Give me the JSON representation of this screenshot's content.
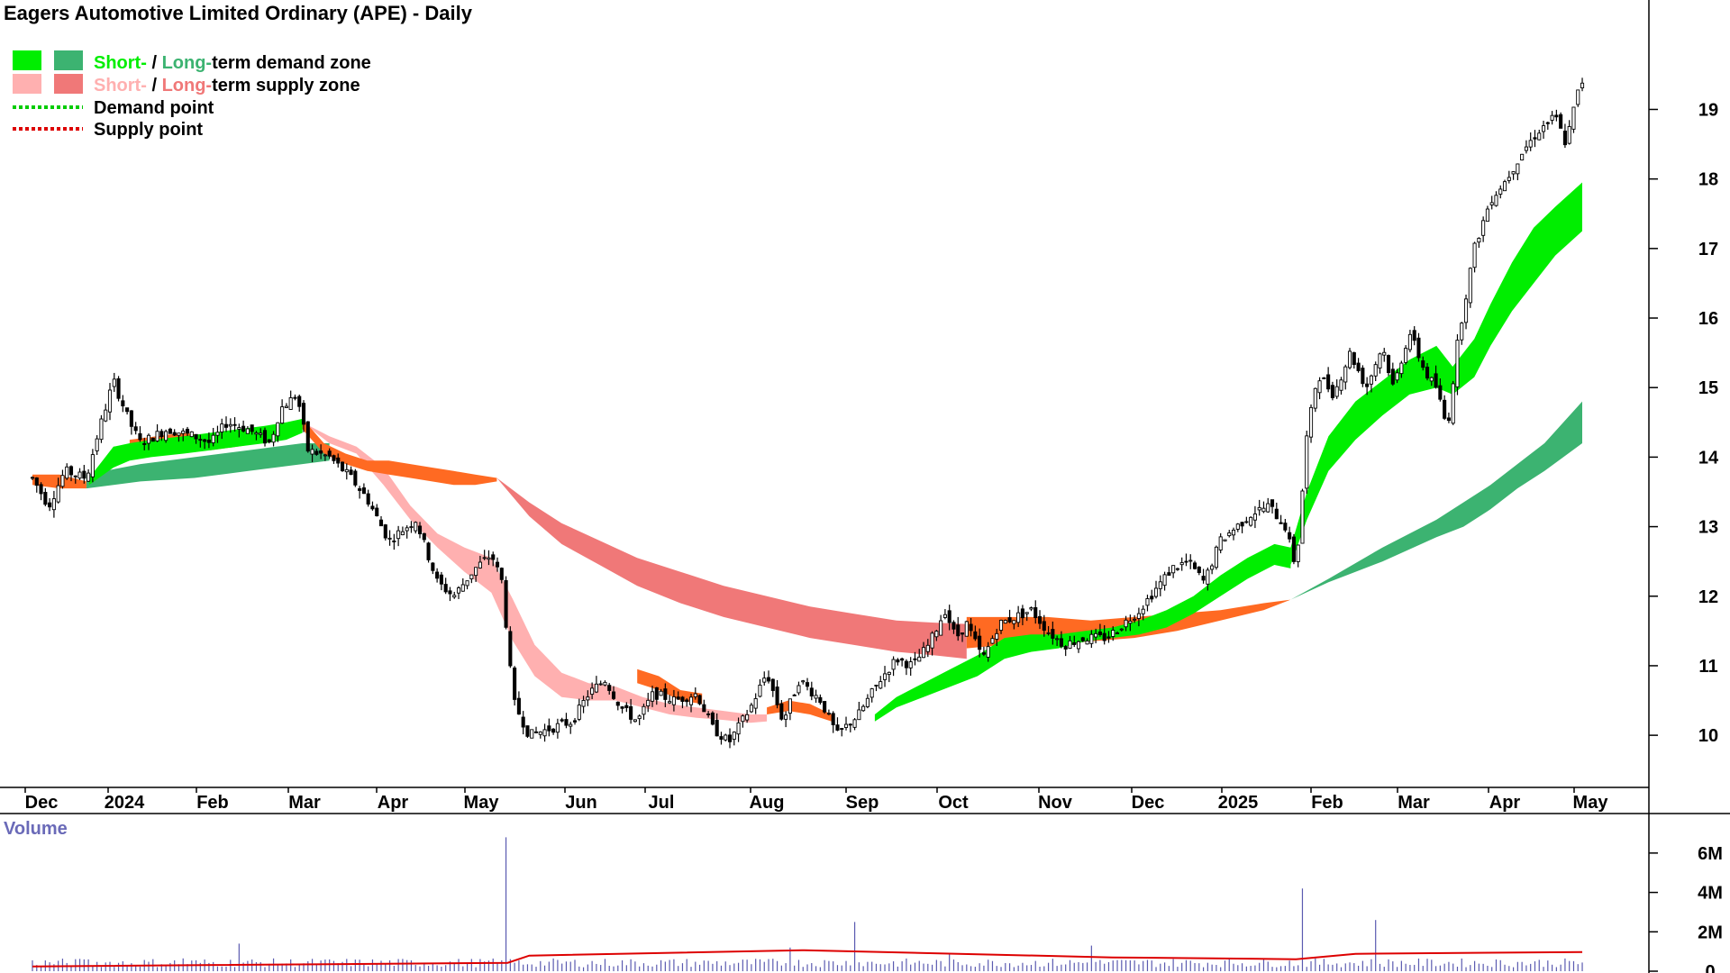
{
  "title": "Eagers Automotive Limited Ordinary (APE) - Daily",
  "legend": {
    "demand_zone": {
      "short": "Short-",
      "sep": " / ",
      "long": "Long-",
      "rest": "term demand zone"
    },
    "supply_zone": {
      "short": "Short-",
      "sep": " / ",
      "long": "Long-",
      "rest": "term supply zone"
    },
    "demand_point": "Demand point",
    "supply_point": "Supply point"
  },
  "colors": {
    "short_demand": "#00ee00",
    "long_demand": "#3cb371",
    "short_supply": "#ffb0b0",
    "long_supply": "#f07878",
    "orange_zone": "#ff6a22",
    "demand_point": "#00cc00",
    "supply_point": "#dd0000",
    "volume_bar": "#5a5ab0",
    "volume_ma": "#dd0000",
    "volume_label": "#6a6ab8"
  },
  "volume_label": "Volume",
  "chart_data": {
    "type": "candlestick",
    "title": "Eagers Automotive Limited Ordinary (APE) - Daily",
    "x_labels": [
      "Dec",
      "2024",
      "Feb",
      "Mar",
      "Apr",
      "May",
      "Jun",
      "Jul",
      "Aug",
      "Sep",
      "Oct",
      "Nov",
      "Dec",
      "2025",
      "Feb",
      "Mar",
      "Apr",
      "May"
    ],
    "y_axis": {
      "side": "right",
      "ticks": [
        10,
        11,
        12,
        13,
        14,
        15,
        16,
        17,
        18,
        19
      ],
      "range": [
        9.6,
        19.9
      ]
    },
    "volume_axis": {
      "side": "right",
      "ticks": [
        "0",
        "2M",
        "4M",
        "6M"
      ],
      "tick_values": [
        0,
        2000000,
        4000000,
        6000000
      ],
      "range": [
        0,
        7000000
      ]
    },
    "price_anchors": [
      [
        0,
        13.7
      ],
      [
        0.3,
        13.3
      ],
      [
        0.6,
        13.8
      ],
      [
        1.0,
        13.7
      ],
      [
        1.2,
        14.3
      ],
      [
        1.5,
        15.1
      ],
      [
        1.8,
        14.5
      ],
      [
        2.0,
        14.2
      ],
      [
        2.5,
        14.4
      ],
      [
        3.0,
        14.3
      ],
      [
        3.3,
        14.2
      ],
      [
        3.6,
        14.5
      ],
      [
        4.0,
        14.4
      ],
      [
        4.4,
        14.2
      ],
      [
        4.6,
        14.7
      ],
      [
        4.9,
        14.9
      ],
      [
        5.1,
        14.1
      ],
      [
        5.5,
        14.0
      ],
      [
        5.9,
        13.7
      ],
      [
        6.2,
        13.4
      ],
      [
        6.6,
        12.8
      ],
      [
        7.1,
        13.1
      ],
      [
        7.5,
        12.2
      ],
      [
        7.8,
        12.0
      ],
      [
        8.2,
        12.4
      ],
      [
        8.5,
        12.6
      ],
      [
        8.7,
        12.2
      ],
      [
        8.9,
        10.5
      ],
      [
        9.2,
        10.0
      ],
      [
        9.6,
        10.1
      ],
      [
        10.0,
        10.2
      ],
      [
        10.3,
        10.6
      ],
      [
        10.6,
        10.8
      ],
      [
        10.9,
        10.4
      ],
      [
        11.2,
        10.2
      ],
      [
        11.5,
        10.6
      ],
      [
        11.9,
        10.5
      ],
      [
        12.3,
        10.6
      ],
      [
        12.6,
        10.1
      ],
      [
        12.9,
        9.9
      ],
      [
        13.3,
        10.4
      ],
      [
        13.6,
        10.9
      ],
      [
        13.9,
        10.2
      ],
      [
        14.2,
        10.8
      ],
      [
        14.6,
        10.5
      ],
      [
        14.9,
        10.0
      ],
      [
        15.3,
        10.3
      ],
      [
        15.7,
        10.8
      ],
      [
        16.0,
        11.1
      ],
      [
        16.3,
        11.0
      ],
      [
        16.6,
        11.3
      ],
      [
        16.9,
        11.8
      ],
      [
        17.1,
        11.4
      ],
      [
        17.3,
        11.6
      ],
      [
        17.6,
        11.1
      ],
      [
        17.9,
        11.6
      ],
      [
        18.2,
        11.7
      ],
      [
        18.5,
        11.8
      ],
      [
        18.8,
        11.5
      ],
      [
        19.1,
        11.3
      ],
      [
        19.5,
        11.4
      ],
      [
        19.9,
        11.4
      ],
      [
        20.2,
        11.6
      ],
      [
        20.5,
        11.8
      ],
      [
        20.8,
        12.1
      ],
      [
        21.1,
        12.4
      ],
      [
        21.4,
        12.5
      ],
      [
        21.7,
        12.2
      ],
      [
        22.0,
        12.8
      ],
      [
        22.3,
        13.0
      ],
      [
        22.6,
        13.2
      ],
      [
        22.9,
        13.3
      ],
      [
        23.2,
        13.0
      ],
      [
        23.4,
        12.4
      ],
      [
        23.6,
        14.3
      ],
      [
        23.8,
        15.2
      ],
      [
        24.1,
        14.9
      ],
      [
        24.4,
        15.5
      ],
      [
        24.7,
        15.0
      ],
      [
        25.0,
        15.6
      ],
      [
        25.2,
        15.0
      ],
      [
        25.5,
        15.8
      ],
      [
        25.8,
        15.2
      ],
      [
        26.0,
        15.0
      ],
      [
        26.2,
        14.4
      ],
      [
        26.4,
        15.7
      ],
      [
        26.7,
        17.0
      ],
      [
        27.0,
        17.7
      ],
      [
        27.3,
        18.0
      ],
      [
        27.6,
        18.4
      ],
      [
        27.9,
        18.7
      ],
      [
        28.2,
        18.9
      ],
      [
        28.4,
        18.5
      ],
      [
        28.6,
        19.2
      ],
      [
        28.7,
        19.4
      ]
    ],
    "short_demand_zone": [
      {
        "x": [
          1.05,
          1.5,
          1.8,
          2.2,
          2.8,
          3.3,
          3.8,
          4.3,
          4.7,
          5.0
        ],
        "top": [
          13.7,
          14.15,
          14.2,
          14.25,
          14.3,
          14.35,
          14.4,
          14.45,
          14.5,
          14.55
        ],
        "bottom": [
          13.6,
          13.85,
          13.95,
          14.0,
          14.05,
          14.1,
          14.15,
          14.2,
          14.25,
          14.35
        ]
      },
      {
        "x": [
          15.6,
          16.0,
          16.5,
          17.0,
          17.5,
          18.0,
          18.5,
          19.0,
          19.5,
          20.0,
          20.5,
          21.0,
          21.5,
          22.0,
          22.5,
          23.0,
          23.3
        ],
        "top": [
          10.3,
          10.55,
          10.75,
          10.95,
          11.15,
          11.4,
          11.45,
          11.45,
          11.5,
          11.55,
          11.65,
          11.8,
          12.0,
          12.3,
          12.55,
          12.75,
          12.7
        ],
        "bottom": [
          10.2,
          10.4,
          10.55,
          10.7,
          10.85,
          11.1,
          11.2,
          11.25,
          11.35,
          11.4,
          11.45,
          11.55,
          11.75,
          12.0,
          12.25,
          12.45,
          12.4
        ]
      },
      {
        "x": [
          23.3,
          23.6,
          24.0,
          24.5,
          25.0,
          25.5,
          26.0,
          26.3,
          26.7,
          27.0,
          27.4,
          27.8,
          28.2,
          28.7
        ],
        "top": [
          12.7,
          13.5,
          14.3,
          14.8,
          15.1,
          15.4,
          15.6,
          15.3,
          15.7,
          16.2,
          16.8,
          17.3,
          17.6,
          17.95
        ],
        "bottom": [
          12.45,
          13.1,
          13.8,
          14.25,
          14.6,
          14.9,
          15.0,
          14.9,
          15.15,
          15.6,
          16.1,
          16.5,
          16.9,
          17.25
        ]
      }
    ],
    "long_demand_zone": [
      {
        "x": [
          1.0,
          2.0,
          3.0,
          4.0,
          5.0,
          5.5
        ],
        "top": [
          13.75,
          13.9,
          14.0,
          14.1,
          14.2,
          14.2
        ],
        "bottom": [
          13.55,
          13.65,
          13.7,
          13.8,
          13.9,
          13.95
        ]
      },
      {
        "x": [
          23.3,
          24.0,
          25.0,
          26.0,
          26.5,
          27.0,
          27.5,
          28.0,
          28.7
        ],
        "top": [
          11.95,
          12.25,
          12.7,
          13.1,
          13.35,
          13.6,
          13.9,
          14.2,
          14.8
        ],
        "bottom": [
          11.95,
          12.2,
          12.5,
          12.85,
          13.0,
          13.25,
          13.55,
          13.8,
          14.2
        ]
      }
    ],
    "short_supply_zone": [
      {
        "x": [
          5.0,
          5.5,
          6.0,
          6.5,
          7.0,
          7.5,
          8.0,
          8.5,
          8.9,
          9.3,
          9.8,
          10.3,
          10.8,
          11.3,
          11.8,
          12.3,
          12.8,
          13.3,
          13.6
        ],
        "top": [
          14.5,
          14.3,
          14.15,
          13.85,
          13.3,
          12.9,
          12.7,
          12.55,
          11.95,
          11.3,
          10.9,
          10.75,
          10.7,
          10.55,
          10.45,
          10.4,
          10.35,
          10.3,
          10.3
        ],
        "bottom": [
          14.5,
          14.2,
          14.05,
          13.6,
          13.1,
          12.7,
          12.35,
          12.05,
          11.35,
          10.85,
          10.55,
          10.5,
          10.5,
          10.4,
          10.3,
          10.25,
          10.22,
          10.18,
          10.2
        ]
      }
    ],
    "long_supply_zone": [
      {
        "x": [
          8.6,
          9.2,
          9.8,
          10.5,
          11.2,
          12.0,
          12.8,
          13.6,
          14.4,
          15.2,
          16.0,
          16.7,
          17.3
        ],
        "top": [
          13.7,
          13.35,
          13.05,
          12.8,
          12.55,
          12.35,
          12.15,
          12.0,
          11.85,
          11.75,
          11.65,
          11.62,
          11.6
        ],
        "bottom": [
          13.7,
          13.15,
          12.75,
          12.45,
          12.15,
          11.9,
          11.7,
          11.55,
          11.4,
          11.3,
          11.2,
          11.15,
          11.1
        ]
      }
    ],
    "orange_zone": [
      {
        "x": [
          0.0,
          0.5,
          1.0
        ],
        "top": [
          13.75,
          13.75,
          13.65
        ],
        "bottom": [
          13.6,
          13.55,
          13.55
        ]
      },
      {
        "x": [
          1.8,
          2.3,
          2.8,
          3.3,
          3.8,
          4.2
        ],
        "top": [
          14.25,
          14.3,
          14.35,
          14.3,
          14.35,
          14.4
        ],
        "bottom": [
          14.1,
          14.15,
          14.15,
          14.1,
          14.15,
          14.2
        ]
      },
      {
        "x": [
          4.6,
          5.0,
          5.4,
          5.8,
          6.2,
          6.6,
          7.0,
          7.4,
          7.8,
          8.2,
          8.6
        ],
        "top": [
          14.4,
          14.55,
          14.2,
          14.05,
          13.95,
          13.95,
          13.9,
          13.85,
          13.8,
          13.75,
          13.7
        ],
        "bottom": [
          14.25,
          14.4,
          14.05,
          13.9,
          13.8,
          13.75,
          13.7,
          13.65,
          13.6,
          13.6,
          13.65
        ]
      },
      {
        "x": [
          11.2,
          11.6,
          12.0,
          12.4
        ],
        "top": [
          10.95,
          10.85,
          10.65,
          10.6
        ],
        "bottom": [
          10.75,
          10.65,
          10.5,
          10.45
        ]
      },
      {
        "x": [
          13.6,
          14.0,
          14.4,
          14.8
        ],
        "top": [
          10.4,
          10.5,
          10.45,
          10.3
        ],
        "bottom": [
          10.3,
          10.35,
          10.3,
          10.2
        ]
      },
      {
        "x": [
          17.3,
          18.0,
          18.8,
          19.6,
          20.4,
          21.2,
          22.0,
          22.8,
          23.3
        ],
        "top": [
          11.7,
          11.7,
          11.7,
          11.65,
          11.7,
          11.75,
          11.8,
          11.9,
          11.95
        ],
        "bottom": [
          11.25,
          11.3,
          11.3,
          11.35,
          11.4,
          11.5,
          11.65,
          11.8,
          11.95
        ]
      }
    ],
    "volume": {
      "spike_positions": [
        1.0,
        2.8,
        3.8,
        8.8,
        14.0,
        15.2,
        17.0,
        19.6,
        23.5,
        24.9
      ],
      "spike_values": [
        600000,
        650000,
        1400000,
        6800000,
        1200000,
        2500000,
        900000,
        1300000,
        4200000,
        2600000
      ],
      "baseline": 500000,
      "moving_average_level": 700000
    }
  }
}
